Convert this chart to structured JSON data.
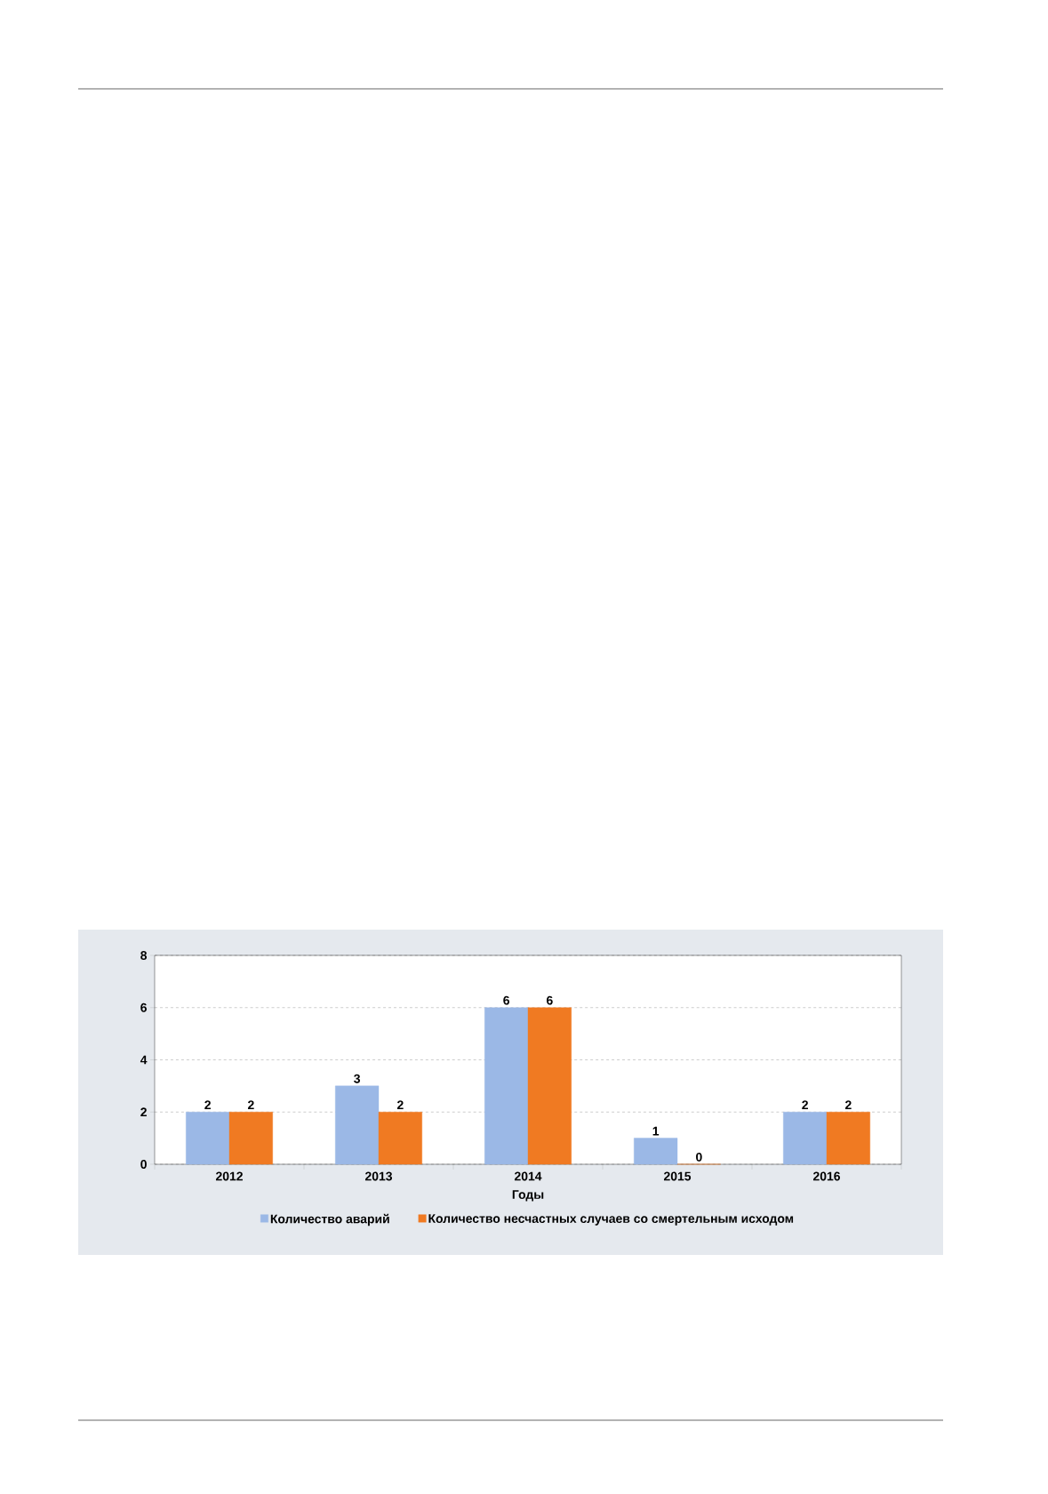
{
  "chart_data": {
    "type": "bar",
    "xlabel": "Годы",
    "categories": [
      "2012",
      "2013",
      "2014",
      "2015",
      "2016"
    ],
    "series": [
      {
        "name": "Количество аварий",
        "color": "#9bb8e6",
        "values": [
          2,
          3,
          6,
          1,
          2
        ]
      },
      {
        "name": "Количество несчастных случаев со смертельным исходом",
        "color": "#f07a22",
        "values": [
          2,
          2,
          6,
          0,
          2
        ]
      }
    ],
    "ylim": [
      0,
      8
    ],
    "yticks": [
      0,
      2,
      4,
      6,
      8
    ],
    "grid": "y",
    "legend": "bottom",
    "data_labels": true
  }
}
